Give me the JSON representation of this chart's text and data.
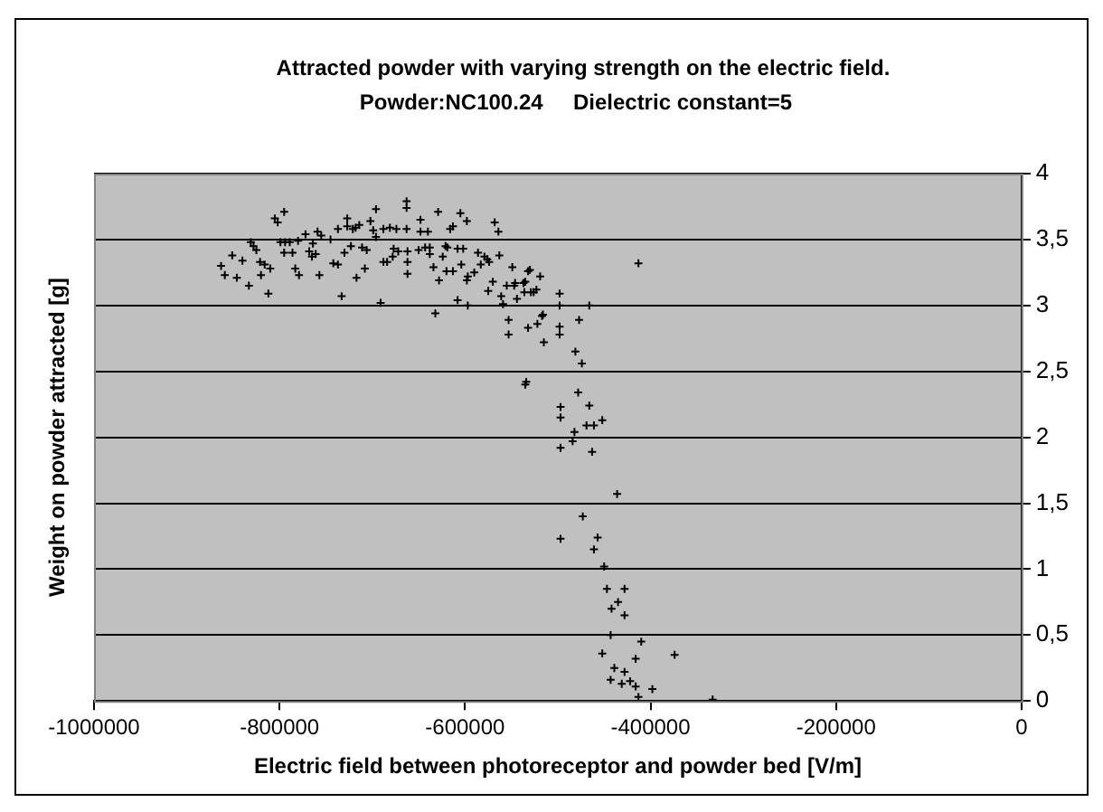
{
  "chart_data": {
    "type": "scatter",
    "title": "Attracted powder with varying strength on the electric field.",
    "subtitle": "Powder:NC100.24     Dielectric constant=5",
    "xlabel": "Electric field between photoreceptor and powder bed [V/m]",
    "ylabel": "Weight on powder attracted [g]",
    "xlim": [
      -1000000,
      0
    ],
    "xticks": [
      -1000000,
      -800000,
      -600000,
      -400000,
      -200000,
      0
    ],
    "ylim": [
      0,
      4
    ],
    "yticks": [
      0,
      {
        "value": 0.5,
        "label": "0,5"
      },
      1,
      {
        "value": 1.5,
        "label": "1,5"
      },
      2,
      {
        "value": 2.5,
        "label": "2,5"
      },
      3,
      {
        "value": 3.5,
        "label": "3,5"
      },
      4
    ],
    "grid": "y",
    "legend": false,
    "marker": "cross",
    "series": [
      {
        "color": "#000000",
        "x": [
          -863000,
          -859000,
          -851000,
          -846000,
          -840000,
          -833000,
          -831000,
          -828000,
          -825000,
          -821000,
          -820000,
          -816000,
          -812000,
          -810000,
          -805000,
          -802000,
          -799000,
          -795000,
          -795000,
          -794000,
          -789000,
          -786000,
          -783000,
          -780000,
          -779000,
          -772000,
          -768000,
          -765000,
          -764000,
          -761000,
          -759000,
          -757000,
          -755000,
          -745000,
          -742000,
          -737000,
          -737000,
          -733000,
          -730000,
          -727000,
          -727000,
          -723000,
          -721000,
          -718000,
          -717000,
          -714000,
          -711000,
          -708000,
          -706000,
          -702000,
          -699000,
          -696000,
          -696000,
          -691000,
          -688000,
          -688000,
          -684000,
          -681000,
          -678000,
          -677000,
          -674000,
          -672000,
          -663000,
          -663000,
          -663000,
          -662000,
          -662000,
          -662000,
          -650000,
          -648000,
          -648000,
          -643000,
          -640000,
          -638000,
          -638000,
          -634000,
          -632000,
          -629000,
          -628000,
          -624000,
          -621000,
          -620000,
          -619000,
          -616000,
          -613000,
          -613000,
          -608000,
          -608000,
          -605000,
          -604000,
          -602000,
          -598000,
          -598000,
          -597000,
          -597000,
          -590000,
          -586000,
          -583000,
          -579000,
          -576000,
          -575000,
          -574000,
          -570000,
          -568000,
          -564000,
          -563000,
          -561000,
          -559000,
          -555000,
          -553000,
          -553000,
          -549000,
          -547000,
          -544000,
          -537000,
          -536000,
          -534000,
          -532000,
          -532000,
          -526000,
          -523000,
          -522000,
          -519000,
          -517000,
          -515000,
          -498000,
          -498000,
          -498000,
          -498000,
          -546000,
          -535000,
          -530000,
          -529000,
          -516000,
          -481000,
          -477000,
          -474000,
          -466000,
          -413000,
          -535000,
          -478000,
          -497000,
          -497000,
          -466000,
          -469000,
          -461000,
          -452000,
          -482000,
          -484000,
          -497000,
          -463000,
          -436000,
          -473000,
          -497000,
          -457000,
          -461000,
          -450000,
          -447000,
          -428000,
          -435000,
          -442000,
          -428000,
          -443000,
          -410000,
          -374000,
          -452000,
          -416000,
          -439000,
          -428000,
          -443000,
          -431000,
          -422000,
          -416000,
          -398000,
          -413000,
          -333000
        ],
        "values": [
          3.3,
          3.23,
          3.38,
          3.21,
          3.34,
          3.15,
          3.48,
          3.45,
          3.42,
          3.33,
          3.23,
          3.31,
          3.09,
          3.28,
          3.66,
          3.63,
          3.48,
          3.71,
          3.4,
          3.48,
          3.48,
          3.4,
          3.28,
          3.49,
          3.23,
          3.54,
          3.41,
          3.37,
          3.47,
          3.39,
          3.56,
          3.23,
          3.53,
          3.5,
          3.32,
          3.58,
          3.31,
          3.07,
          3.4,
          3.66,
          3.6,
          3.45,
          3.58,
          3.59,
          3.21,
          3.61,
          3.44,
          3.28,
          3.42,
          3.64,
          3.57,
          3.73,
          3.52,
          3.02,
          3.58,
          3.33,
          3.33,
          3.59,
          3.37,
          3.43,
          3.58,
          3.41,
          3.79,
          3.74,
          3.58,
          3.41,
          3.33,
          3.24,
          3.42,
          3.65,
          3.56,
          3.44,
          3.56,
          3.44,
          3.39,
          3.29,
          2.94,
          3.71,
          3.19,
          3.37,
          3.45,
          3.26,
          3.44,
          3.58,
          3.6,
          3.26,
          3.04,
          3.43,
          3.7,
          3.31,
          3.43,
          3.64,
          3.19,
          3.22,
          3.0,
          3.25,
          3.4,
          3.31,
          3.37,
          3.35,
          3.11,
          3.33,
          3.18,
          3.63,
          3.56,
          3.38,
          3.07,
          3.01,
          3.15,
          2.89,
          2.78,
          3.29,
          3.15,
          3.05,
          3.17,
          3.1,
          2.42,
          3.26,
          2.83,
          3.1,
          3.12,
          2.86,
          3.22,
          2.92,
          2.72,
          3.09,
          3.0,
          2.84,
          2.78,
          3.17,
          3.18,
          3.27,
          3.1,
          2.93,
          2.65,
          2.89,
          2.56,
          3.0,
          3.32,
          2.4,
          2.34,
          2.23,
          2.15,
          2.24,
          2.09,
          2.09,
          2.13,
          2.04,
          1.97,
          1.92,
          1.89,
          1.57,
          1.4,
          1.23,
          1.24,
          1.15,
          1.02,
          0.85,
          0.85,
          0.75,
          0.7,
          0.65,
          0.5,
          0.45,
          0.35,
          0.36,
          0.32,
          0.25,
          0.22,
          0.16,
          0.13,
          0.15,
          0.11,
          0.09,
          0.03,
          0.01
        ]
      }
    ]
  }
}
